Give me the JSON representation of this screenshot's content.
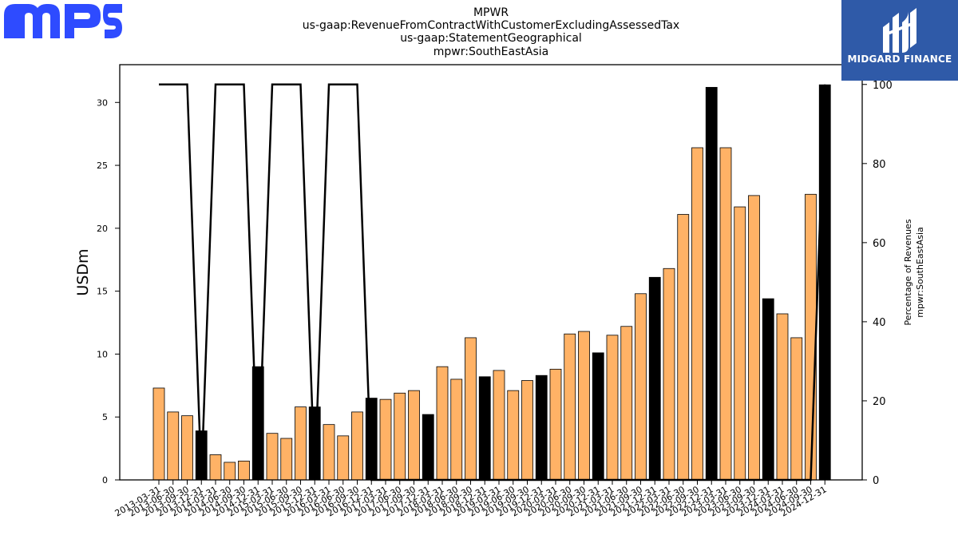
{
  "header": {
    "titles": [
      "MPWR",
      "us-gaap:RevenueFromContractWithCustomerExcludingAssessedTax",
      "us-gaap:StatementGeographical",
      "mpwr:SouthEastAsia"
    ]
  },
  "logos": {
    "left_logo_text": "MPS",
    "left_logo_color": "#2e4bff",
    "right_badge_text": "MIDGARD FINANCE",
    "right_badge_color": "#2f5aa8"
  },
  "chart_data": {
    "type": "bar",
    "ylabel": "USDm",
    "y2label_lines": [
      "Percentage of Revenues",
      "mpwr:SouthEastAsia"
    ],
    "ylim": [
      0,
      33
    ],
    "y2lim": [
      0,
      105
    ],
    "yticks": [
      0,
      5,
      10,
      15,
      20,
      25,
      30
    ],
    "y2ticks": [
      0,
      20,
      40,
      60,
      80,
      100
    ],
    "colors": {
      "quarter_bar": "#ffb266",
      "annual_bar": "#000000",
      "line": "#000000"
    },
    "categories": [
      "2013-03-31",
      "2013-06-30",
      "2013-09-30",
      "2013-12-31",
      "2014-03-31",
      "2014-06-30",
      "2014-09-30",
      "2014-12-31",
      "2015-03-31",
      "2015-06-30",
      "2015-09-30",
      "2015-12-31",
      "2016-03-31",
      "2016-06-30",
      "2016-09-30",
      "2016-12-31",
      "2017-03-31",
      "2017-06-30",
      "2017-09-30",
      "2017-12-31",
      "2018-03-31",
      "2018-06-30",
      "2018-09-30",
      "2018-12-31",
      "2019-03-31",
      "2019-06-30",
      "2019-09-30",
      "2019-12-31",
      "2020-03-31",
      "2020-06-30",
      "2020-09-30",
      "2020-12-31",
      "2021-03-31",
      "2021-06-30",
      "2021-09-30",
      "2021-12-31",
      "2022-03-31",
      "2022-06-30",
      "2022-09-30",
      "2022-12-31",
      "2023-03-31",
      "2023-06-30",
      "2023-09-30",
      "2023-12-31",
      "2024-03-31",
      "2024-06-30",
      "2024-09-30",
      "2024-12-31"
    ],
    "values": [
      7.3,
      5.4,
      5.1,
      3.9,
      2.0,
      1.4,
      1.5,
      9.0,
      3.7,
      3.3,
      5.8,
      5.8,
      4.4,
      3.5,
      5.4,
      6.5,
      6.4,
      6.9,
      7.1,
      5.2,
      9.0,
      8.0,
      11.3,
      8.2,
      8.7,
      7.1,
      7.9,
      8.3,
      8.8,
      11.6,
      11.8,
      10.1,
      11.5,
      12.2,
      14.8,
      16.1,
      16.8,
      21.1,
      26.4,
      31.2,
      26.4,
      21.7,
      22.6,
      14.4,
      13.2,
      11.3,
      22.7,
      31.4
    ],
    "annual_flags": [
      false,
      false,
      false,
      true,
      false,
      false,
      false,
      true,
      false,
      false,
      false,
      true,
      false,
      false,
      false,
      true,
      false,
      false,
      false,
      true,
      false,
      false,
      false,
      true,
      false,
      false,
      false,
      true,
      false,
      false,
      false,
      true,
      false,
      false,
      false,
      true,
      false,
      false,
      false,
      true,
      false,
      false,
      false,
      true,
      false,
      false,
      false,
      true
    ],
    "percentage_series": [
      100,
      100,
      100,
      0,
      100,
      100,
      100,
      0,
      100,
      100,
      100,
      0,
      100,
      100,
      100,
      0,
      0,
      0,
      0,
      0,
      0,
      0,
      0,
      0,
      0,
      0,
      0,
      0,
      0,
      0,
      0,
      0,
      0,
      0,
      0,
      0,
      0,
      0,
      0,
      0,
      0,
      0,
      0,
      0,
      0,
      0,
      0,
      100
    ]
  }
}
